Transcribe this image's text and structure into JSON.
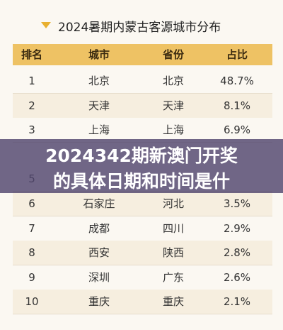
{
  "header": {
    "title": "2024暑期内蒙古客源城市分布"
  },
  "table": {
    "columns": [
      "排名",
      "城市",
      "省份",
      "占比"
    ],
    "rows": [
      [
        "1",
        "北京",
        "北京",
        "48.7%"
      ],
      [
        "2",
        "天津",
        "天津",
        "8.1%"
      ],
      [
        "3",
        "上海",
        "上海",
        "6.9%"
      ],
      [
        "5"
      ],
      [
        "6",
        "石家庄",
        "河北",
        "3.5%"
      ],
      [
        "7",
        "成都",
        "四川",
        "2.9%"
      ],
      [
        "8",
        "西安",
        "陕西",
        "2.8%"
      ],
      [
        "9",
        "深圳",
        "广东",
        "2.6%"
      ],
      [
        "10",
        "重庆",
        "重庆",
        "2.1%"
      ]
    ]
  },
  "banner": {
    "lines": [
      "2024342期新澳门开奖",
      "的具体日期和时间是什"
    ]
  }
}
